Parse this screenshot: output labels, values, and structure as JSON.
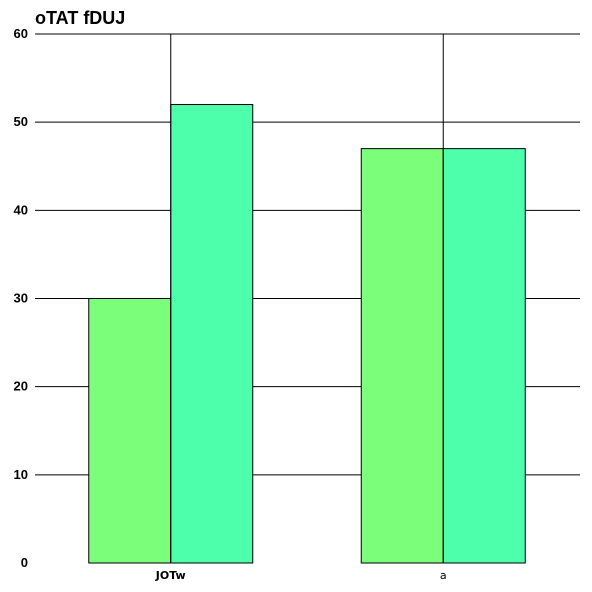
{
  "chart_data": {
    "type": "bar",
    "title": "oTAT fDUJ",
    "xlabel": "",
    "ylabel": "",
    "categories": [
      "JOTw",
      "a"
    ],
    "series": [
      {
        "values": [
          30,
          47
        ],
        "color": "#7bff7b"
      },
      {
        "values": [
          52,
          47
        ],
        "color": "#4dffaa"
      }
    ],
    "ylim": [
      0,
      60
    ],
    "yticks": [
      0,
      10,
      20,
      30,
      40,
      50,
      60
    ],
    "grid": "horizontal",
    "legend": "none"
  }
}
